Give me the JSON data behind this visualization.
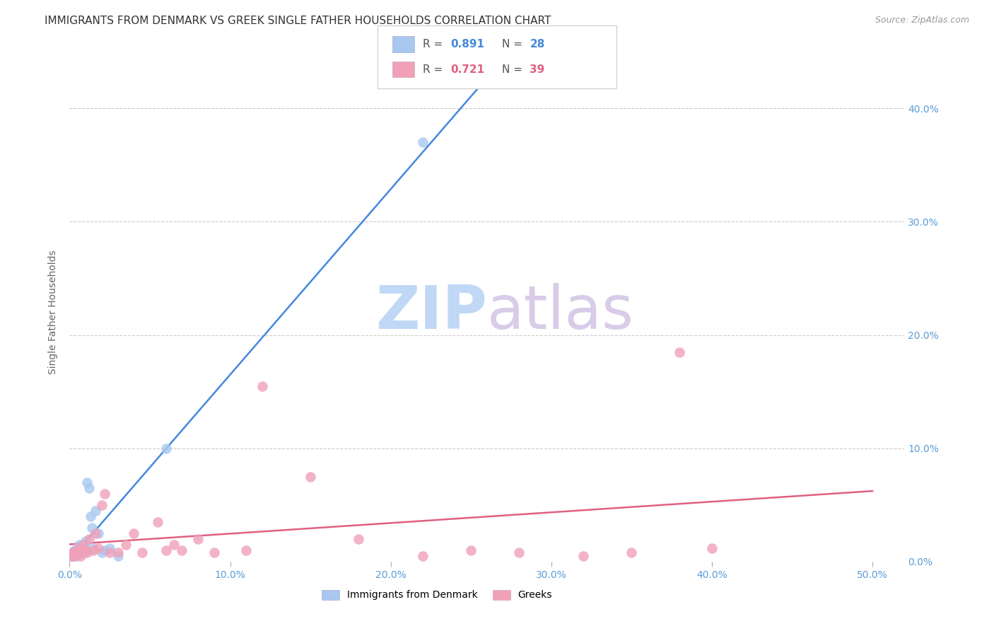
{
  "title": "IMMIGRANTS FROM DENMARK VS GREEK SINGLE FATHER HOUSEHOLDS CORRELATION CHART",
  "source": "Source: ZipAtlas.com",
  "ylabel": "Single Father Households",
  "denmark_R": 0.891,
  "denmark_N": 28,
  "greek_R": 0.721,
  "greek_N": 39,
  "denmark_color": "#A8C8F0",
  "greek_color": "#F0A0B8",
  "denmark_line_color": "#4488DD",
  "greek_line_color": "#E06080",
  "denmark_x": [
    0.001,
    0.002,
    0.002,
    0.003,
    0.003,
    0.004,
    0.004,
    0.005,
    0.005,
    0.006,
    0.006,
    0.007,
    0.008,
    0.009,
    0.01,
    0.011,
    0.012,
    0.013,
    0.014,
    0.015,
    0.016,
    0.018,
    0.02,
    0.022,
    0.025,
    0.03,
    0.06,
    0.22
  ],
  "denmark_y": [
    0.005,
    0.005,
    0.008,
    0.005,
    0.01,
    0.005,
    0.01,
    0.008,
    0.012,
    0.008,
    0.015,
    0.01,
    0.012,
    0.015,
    0.018,
    0.07,
    0.065,
    0.04,
    0.03,
    0.012,
    0.045,
    0.025,
    0.008,
    0.01,
    0.012,
    0.005,
    0.1,
    0.37
  ],
  "greek_x": [
    0.001,
    0.002,
    0.003,
    0.004,
    0.005,
    0.006,
    0.007,
    0.008,
    0.009,
    0.01,
    0.011,
    0.012,
    0.015,
    0.016,
    0.018,
    0.02,
    0.022,
    0.025,
    0.03,
    0.035,
    0.04,
    0.045,
    0.055,
    0.06,
    0.065,
    0.07,
    0.08,
    0.09,
    0.11,
    0.12,
    0.15,
    0.18,
    0.22,
    0.25,
    0.28,
    0.32,
    0.35,
    0.38,
    0.4
  ],
  "greek_y": [
    0.005,
    0.008,
    0.005,
    0.01,
    0.008,
    0.012,
    0.005,
    0.015,
    0.008,
    0.01,
    0.008,
    0.02,
    0.01,
    0.025,
    0.012,
    0.05,
    0.06,
    0.008,
    0.008,
    0.015,
    0.025,
    0.008,
    0.035,
    0.01,
    0.015,
    0.01,
    0.02,
    0.008,
    0.01,
    0.155,
    0.075,
    0.02,
    0.005,
    0.01,
    0.008,
    0.005,
    0.008,
    0.185,
    0.012
  ],
  "xlim": [
    0.0,
    0.52
  ],
  "ylim": [
    0.0,
    0.44
  ],
  "xticks": [
    0.0,
    0.1,
    0.2,
    0.3,
    0.4,
    0.5
  ],
  "yticks": [
    0.0,
    0.1,
    0.2,
    0.3,
    0.4
  ],
  "background_color": "#FFFFFF",
  "grid_color": "#CCCCCC",
  "tick_label_color": "#5B9BD5",
  "title_fontsize": 11,
  "source_fontsize": 9,
  "ylabel_fontsize": 10
}
